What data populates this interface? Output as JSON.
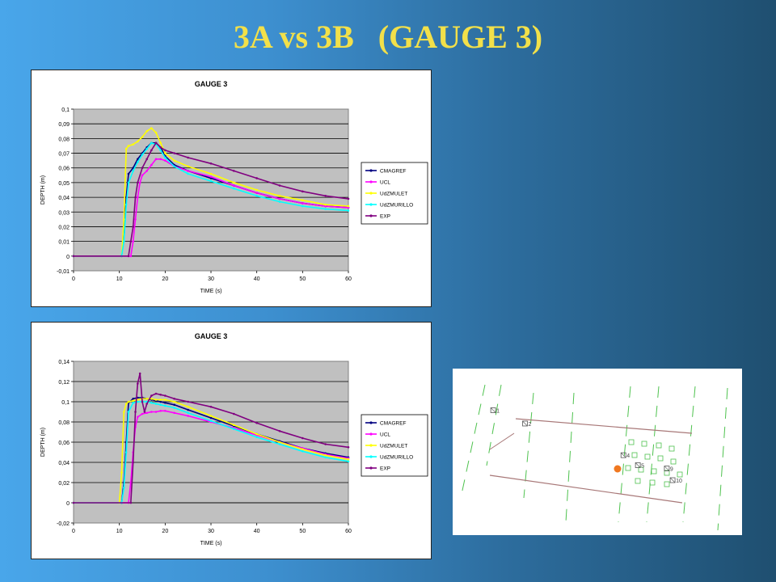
{
  "slide": {
    "title": "3A vs 3B   (GAUGE 3)"
  },
  "chart_data": [
    {
      "type": "line",
      "title": "GAUGE 3",
      "xlabel": "TIME (s)",
      "ylabel": "DEPTH (m)",
      "xlim": [
        0,
        60
      ],
      "ylim": [
        -0.01,
        0.1
      ],
      "xticks": [
        "0",
        "10",
        "20",
        "30",
        "40",
        "50",
        "60"
      ],
      "yticks": [
        "-0,01",
        "0",
        "0,01",
        "0,02",
        "0,03",
        "0,04",
        "0,05",
        "0,06",
        "0,07",
        "0,08",
        "0,09",
        "0,1"
      ],
      "grid": true,
      "legend": "right",
      "series": [
        {
          "name": "CMAGREF",
          "color": "#000080",
          "x": [
            0,
            10.5,
            11,
            11.5,
            12,
            13,
            14,
            15,
            16,
            17,
            18,
            19,
            20,
            22,
            25,
            30,
            35,
            40,
            45,
            50,
            55,
            60
          ],
          "y": [
            0,
            0,
            0.016,
            0.04,
            0.056,
            0.06,
            0.066,
            0.07,
            0.074,
            0.077,
            0.077,
            0.074,
            0.068,
            0.062,
            0.058,
            0.053,
            0.048,
            0.043,
            0.039,
            0.036,
            0.034,
            0.033
          ]
        },
        {
          "name": "UCL",
          "color": "#ff00ff",
          "x": [
            0,
            12.5,
            13,
            13.5,
            14,
            14.5,
            15,
            16,
            17,
            18,
            19,
            20,
            22,
            25,
            30,
            35,
            40,
            45,
            50,
            55,
            60
          ],
          "y": [
            0,
            0,
            0.01,
            0.025,
            0.04,
            0.05,
            0.055,
            0.058,
            0.062,
            0.066,
            0.066,
            0.065,
            0.061,
            0.058,
            0.054,
            0.048,
            0.043,
            0.039,
            0.036,
            0.034,
            0.033
          ]
        },
        {
          "name": "UdZMULET",
          "color": "#ffff00",
          "x": [
            0,
            10.5,
            11,
            11.5,
            12,
            13,
            14,
            15,
            16,
            17,
            18,
            19,
            20,
            22,
            25,
            30,
            35,
            40,
            45,
            50,
            55,
            60
          ],
          "y": [
            0,
            0,
            0.025,
            0.073,
            0.075,
            0.076,
            0.078,
            0.081,
            0.085,
            0.087,
            0.084,
            0.077,
            0.07,
            0.065,
            0.061,
            0.056,
            0.05,
            0.045,
            0.041,
            0.038,
            0.035,
            0.034
          ]
        },
        {
          "name": "UdZMURILLO",
          "color": "#00ffff",
          "x": [
            0,
            10.5,
            11,
            11.5,
            12,
            13,
            14,
            15,
            16,
            17,
            18,
            19,
            20,
            22,
            25,
            30,
            35,
            40,
            45,
            50,
            55,
            60
          ],
          "y": [
            0,
            0,
            0.01,
            0.035,
            0.05,
            0.058,
            0.064,
            0.069,
            0.073,
            0.077,
            0.076,
            0.072,
            0.067,
            0.061,
            0.056,
            0.051,
            0.046,
            0.041,
            0.037,
            0.034,
            0.032,
            0.031
          ]
        },
        {
          "name": "EXP",
          "color": "#800080",
          "x": [
            0,
            12,
            12.5,
            13,
            13.5,
            14,
            15,
            16,
            17,
            18,
            19,
            20,
            22,
            25,
            30,
            35,
            40,
            45,
            50,
            55,
            60
          ],
          "y": [
            0,
            0,
            0.01,
            0.02,
            0.04,
            0.05,
            0.06,
            0.066,
            0.072,
            0.077,
            0.074,
            0.072,
            0.07,
            0.067,
            0.063,
            0.058,
            0.053,
            0.048,
            0.044,
            0.041,
            0.039
          ]
        }
      ]
    },
    {
      "type": "line",
      "title": "GAUGE 3",
      "xlabel": "TIME (s)",
      "ylabel": "DEPTH (m)",
      "xlim": [
        0,
        60
      ],
      "ylim": [
        -0.02,
        0.14
      ],
      "xticks": [
        "0",
        "10",
        "20",
        "30",
        "40",
        "50",
        "60"
      ],
      "yticks": [
        "-0,02",
        "0",
        "0,02",
        "0,04",
        "0,06",
        "0,08",
        "0,1",
        "0,12",
        "0,14"
      ],
      "grid": true,
      "legend": "right",
      "series": [
        {
          "name": "CMAGREF",
          "color": "#000080",
          "x": [
            0,
            10.5,
            11,
            11.5,
            12,
            13,
            14,
            15,
            16,
            17,
            18,
            19,
            20,
            22,
            25,
            30,
            35,
            40,
            45,
            50,
            55,
            60
          ],
          "y": [
            0,
            0,
            0.02,
            0.06,
            0.099,
            0.103,
            0.104,
            0.104,
            0.103,
            0.102,
            0.101,
            0.1,
            0.099,
            0.097,
            0.092,
            0.084,
            0.076,
            0.068,
            0.061,
            0.054,
            0.049,
            0.045
          ]
        },
        {
          "name": "UCL",
          "color": "#ff00ff",
          "x": [
            0,
            12,
            12.5,
            13,
            13.5,
            14,
            15,
            16,
            17,
            18,
            19,
            20,
            22,
            25,
            30,
            35,
            40,
            45,
            50,
            55,
            60
          ],
          "y": [
            0,
            0,
            0.02,
            0.05,
            0.075,
            0.085,
            0.088,
            0.089,
            0.09,
            0.09,
            0.091,
            0.091,
            0.089,
            0.086,
            0.08,
            0.074,
            0.067,
            0.06,
            0.054,
            0.048,
            0.044
          ]
        },
        {
          "name": "UdZMULET",
          "color": "#ffff00",
          "x": [
            0,
            10,
            10.5,
            11,
            11.5,
            12,
            13,
            14,
            15,
            16,
            17,
            18,
            19,
            20,
            22,
            25,
            30,
            35,
            40,
            45,
            50,
            55,
            60
          ],
          "y": [
            0,
            0,
            0.03,
            0.09,
            0.098,
            0.1,
            0.101,
            0.102,
            0.103,
            0.103,
            0.103,
            0.102,
            0.102,
            0.102,
            0.1,
            0.095,
            0.086,
            0.077,
            0.068,
            0.06,
            0.053,
            0.047,
            0.043
          ]
        },
        {
          "name": "UdZMURILLO",
          "color": "#00ffff",
          "x": [
            0,
            10.5,
            11,
            11.5,
            12,
            13,
            14,
            15,
            16,
            17,
            18,
            19,
            20,
            22,
            25,
            30,
            35,
            40,
            45,
            50,
            55,
            60
          ],
          "y": [
            0,
            0,
            0.015,
            0.05,
            0.09,
            0.099,
            0.1,
            0.1,
            0.1,
            0.099,
            0.098,
            0.097,
            0.096,
            0.094,
            0.089,
            0.081,
            0.073,
            0.065,
            0.058,
            0.051,
            0.045,
            0.041
          ]
        },
        {
          "name": "EXP",
          "color": "#800080",
          "x": [
            0,
            12.5,
            13,
            13.5,
            14,
            14.5,
            15,
            15.5,
            16,
            17,
            18,
            19,
            20,
            22,
            25,
            30,
            35,
            40,
            45,
            50,
            55,
            60
          ],
          "y": [
            0,
            0,
            0.04,
            0.09,
            0.118,
            0.128,
            0.1,
            0.09,
            0.098,
            0.106,
            0.108,
            0.107,
            0.106,
            0.103,
            0.1,
            0.095,
            0.088,
            0.079,
            0.071,
            0.064,
            0.058,
            0.055
          ]
        }
      ]
    }
  ],
  "site_map": {
    "gauges": [
      {
        "label": "1",
        "u": 0.14,
        "v": 0.25
      },
      {
        "label": "2",
        "u": 0.25,
        "v": 0.33
      },
      {
        "label": "4",
        "u": 0.59,
        "v": 0.52
      },
      {
        "label": "5",
        "u": 0.64,
        "v": 0.58
      },
      {
        "label": "9",
        "u": 0.74,
        "v": 0.6
      },
      {
        "label": "10",
        "u": 0.76,
        "v": 0.67
      }
    ],
    "marker_color": "#f07820"
  }
}
